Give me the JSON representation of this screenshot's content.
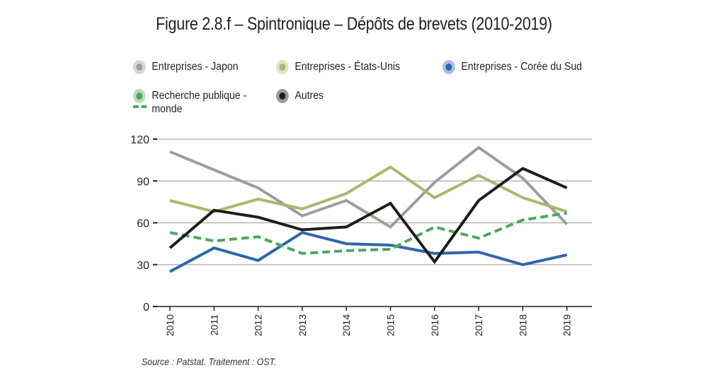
{
  "chart_data": {
    "type": "line",
    "title": "Figure 2.8.f – Spintronique – Dépôts de brevets (2010-2019)",
    "xlabel": "",
    "ylabel": "",
    "categories": [
      "2010",
      "2011",
      "2012",
      "2013",
      "2014",
      "2015",
      "2016",
      "2017",
      "2018",
      "2019"
    ],
    "ylim": [
      0,
      120
    ],
    "yticks": [
      0,
      30,
      60,
      90,
      120
    ],
    "grid": true,
    "legend_position": "top",
    "series": [
      {
        "name": "Entreprises - Japon",
        "color": "#9d9d9c",
        "marker_halo": "#d6d6d6",
        "dash": false,
        "values": [
          111,
          98,
          85,
          65,
          76,
          57,
          89,
          114,
          92,
          59
        ]
      },
      {
        "name": "Entreprises - États-Unis",
        "color": "#a6b96e",
        "marker_halo": "#dbe4bd",
        "dash": false,
        "values": [
          76,
          68,
          77,
          70,
          81,
          100,
          78,
          94,
          78,
          68
        ]
      },
      {
        "name": "Entreprises - Corée du Sud",
        "color": "#2d67a7",
        "marker_halo": "#a8bfe0",
        "dash": false,
        "values": [
          25,
          42,
          33,
          53,
          45,
          44,
          38,
          39,
          30,
          37
        ]
      },
      {
        "name": "Recherche publique - monde",
        "color": "#4ea660",
        "marker_halo": "#b5dcb8",
        "dash": true,
        "values": [
          53,
          47,
          50,
          38,
          40,
          41,
          57,
          49,
          62,
          67
        ]
      },
      {
        "name": "Autres",
        "color": "#1d1d1b",
        "marker_halo": "#9a9a9a",
        "dash": false,
        "values": [
          42,
          69,
          64,
          55,
          57,
          74,
          32,
          76,
          99,
          85
        ]
      }
    ],
    "legend": [
      {
        "label_lines": [
          "Entreprises - Japon"
        ]
      },
      {
        "label_lines": [
          "Entreprises - États-Unis"
        ]
      },
      {
        "label_lines": [
          "Entreprises - Corée du Sud"
        ]
      },
      {
        "label_lines": [
          "Recherche publique -",
          "monde"
        ]
      },
      {
        "label_lines": [
          "Autres"
        ]
      }
    ],
    "source": "Source : Patstat. Traitement : OST."
  }
}
